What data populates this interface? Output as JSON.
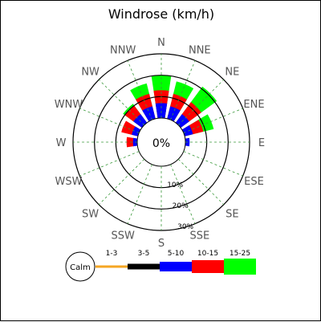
{
  "chart_data": {
    "type": "windrose",
    "title": "Windrose (km/h)",
    "center_label": "0%",
    "directions": [
      "N",
      "NNE",
      "NE",
      "ENE",
      "E",
      "ESE",
      "SE",
      "SSE",
      "S",
      "SSW",
      "SW",
      "WSW",
      "W",
      "WNW",
      "NW",
      "NNW"
    ],
    "rings": [
      {
        "value": 10,
        "label": "10%"
      },
      {
        "value": 20,
        "label": "20%"
      },
      {
        "value": 30,
        "label": "30%"
      }
    ],
    "rmax": 30,
    "calm_label": "Calm",
    "bins": [
      {
        "label": "1-3",
        "color": "#f5a623"
      },
      {
        "label": "3-5",
        "color": "#000000"
      },
      {
        "label": "5-10",
        "color": "#0000ff"
      },
      {
        "label": "10-15",
        "color": "#ff0000"
      },
      {
        "label": "15-25",
        "color": "#00ff00"
      }
    ],
    "cumulative": {
      "N": [
        0,
        0,
        7,
        13,
        20
      ],
      "NNE": [
        0,
        0,
        6,
        12,
        18
      ],
      "NE": [
        0,
        0,
        5,
        12,
        21
      ],
      "ENE": [
        0,
        0,
        4,
        9,
        14
      ],
      "E": [
        0,
        0,
        2,
        2,
        2
      ],
      "ESE": [
        0,
        0,
        0,
        0,
        0
      ],
      "SE": [
        0,
        0,
        0,
        0,
        0
      ],
      "SSE": [
        0,
        0,
        0,
        0,
        0
      ],
      "S": [
        0,
        0,
        0,
        0,
        0
      ],
      "SSW": [
        0,
        0,
        0,
        0,
        0
      ],
      "SW": [
        0,
        0,
        0,
        0,
        0
      ],
      "WSW": [
        0,
        0,
        0,
        0,
        0
      ],
      "W": [
        0,
        0,
        2,
        5,
        5
      ],
      "WNW": [
        0,
        0,
        3,
        8,
        8
      ],
      "NW": [
        0,
        0,
        5,
        10,
        11
      ],
      "NNW": [
        0,
        0,
        6,
        12,
        17
      ]
    },
    "grid": true
  }
}
